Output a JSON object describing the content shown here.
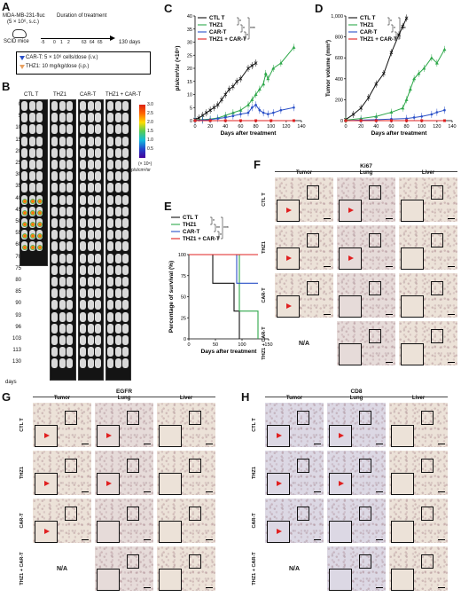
{
  "panels": {
    "A": {
      "letter": "A",
      "cells": "MDA-MB-231-fluc",
      "dose": "(5 × 10⁶, s.c.)",
      "mice": "SCID mice",
      "duration": "Duration of treatment",
      "ticks": [
        "-5",
        "0",
        "1",
        "2",
        "63",
        "64",
        "65"
      ],
      "end_day": "130 days",
      "legend": [
        "CAR-T: 5 × 10⁶ cells/dose (i.v.)",
        "THZ1: 10 mg/kg/dose (i.p.)"
      ]
    },
    "B": {
      "letter": "B",
      "groups": [
        "CTL T",
        "THZ1",
        "CAR-T",
        "THZ1 + CAR-T"
      ],
      "days": [
        "0",
        "5",
        "10",
        "15",
        "20",
        "25",
        "30",
        "35",
        "40",
        "45",
        "50",
        "55",
        "60",
        "70",
        "75",
        "80",
        "85",
        "90",
        "93",
        "96",
        "103",
        "113",
        "130"
      ],
      "days_label": "days",
      "colorbar": {
        "max": "3.0",
        "vals": [
          "3.0",
          "2.5",
          "2.0",
          "1.5",
          "1.0",
          "0.5"
        ],
        "exp": "(× 10⁵)",
        "unit": "p/s/cm²/sr"
      }
    },
    "C": {
      "letter": "C",
      "ylabel": "p/s/cm²/sr (×10⁵)",
      "xlabel": "Days after treatment",
      "yticks": [
        "0",
        "5",
        "10",
        "15",
        "20",
        "25",
        "30",
        "35",
        "40"
      ],
      "xticks": [
        "0",
        "20",
        "40",
        "60",
        "80",
        "100",
        "120",
        "140"
      ],
      "legend": [
        "CTL T",
        "THZ1",
        "CAR-T",
        "THZ1 + CAR-T"
      ],
      "sig": [
        "*",
        "*",
        "*",
        "***"
      ]
    },
    "D": {
      "letter": "D",
      "ylabel": "Tumor volume (mm³)",
      "xlabel": "Days after treatment",
      "yticks": [
        "0",
        "200",
        "400",
        "600",
        "800",
        "1,000"
      ],
      "xticks": [
        "0",
        "20",
        "40",
        "60",
        "80",
        "100",
        "120",
        "140"
      ],
      "legend": [
        "CTL T",
        "THZ1",
        "CAR-T",
        "THZ1 + CAR-T"
      ],
      "sig": [
        "*",
        "*",
        "*",
        "***"
      ]
    },
    "E": {
      "letter": "E",
      "ylabel": "Percentage of survival (%)",
      "xlabel": "Days after treatment",
      "yticks": [
        "0",
        "25",
        "50",
        "75",
        "100"
      ],
      "xticks": [
        "0",
        "50",
        "100",
        "150"
      ],
      "legend": [
        "CTL T",
        "THZ1",
        "CAR-T",
        "THZ1 + CAR-T"
      ],
      "sig": [
        "*",
        "**",
        "*",
        "***"
      ]
    },
    "F": {
      "letter": "F",
      "marker": "Ki67",
      "cols": [
        "Tumor",
        "Lung",
        "Liver"
      ],
      "rows": [
        "CTL  T",
        "THZ1",
        "CAR-T",
        "THZ1 + CAR-T"
      ],
      "na": "N/A"
    },
    "G": {
      "letter": "G",
      "marker": "EGFR",
      "cols": [
        "Tumor",
        "Lung",
        "Liver"
      ],
      "rows": [
        "CTL T",
        "THZ1",
        "CAR-T",
        "THZ1 + CAR-T"
      ],
      "na": "N/A"
    },
    "H": {
      "letter": "H",
      "marker": "CD8",
      "cols": [
        "Tumor",
        "Lung",
        "Liver"
      ],
      "rows": [
        "CTL T",
        "THZ1",
        "CAR-T",
        "THZ1 + CAR-T"
      ],
      "na": "N/A"
    }
  },
  "colors": {
    "ctl": "#111111",
    "thz1": "#2ea84a",
    "cart": "#2a50c8",
    "combo": "#e02020"
  },
  "chart_data": [
    {
      "type": "line",
      "panel": "C",
      "xlabel": "Days after treatment",
      "ylabel": "p/s/cm²/sr (×10⁵)",
      "ylim": [
        0,
        40
      ],
      "xlim": [
        0,
        140
      ],
      "series": [
        {
          "name": "CTL T",
          "x": [
            0,
            5,
            10,
            15,
            20,
            25,
            30,
            35,
            40,
            45,
            50,
            55,
            60,
            70,
            75,
            80
          ],
          "y": [
            0.5,
            1,
            2,
            3,
            4,
            5,
            6,
            8,
            10,
            12,
            13,
            15,
            16,
            20,
            21,
            22
          ]
        },
        {
          "name": "THZ1",
          "x": [
            0,
            10,
            20,
            30,
            40,
            50,
            60,
            70,
            75,
            80,
            85,
            90,
            93,
            96,
            103,
            113,
            130
          ],
          "y": [
            0.2,
            0.4,
            0.6,
            1,
            2,
            3,
            4,
            6,
            8,
            10,
            12,
            14,
            18,
            16,
            20,
            22,
            28
          ]
        },
        {
          "name": "CAR-T",
          "x": [
            0,
            10,
            20,
            30,
            40,
            50,
            60,
            70,
            75,
            80,
            85,
            90,
            96,
            103,
            113,
            130
          ],
          "y": [
            0.1,
            0.2,
            0.4,
            0.8,
            1.2,
            1.8,
            2.5,
            3,
            5,
            6,
            4,
            3,
            2.5,
            3,
            4,
            5
          ]
        },
        {
          "name": "THZ1 + CAR-T",
          "x": [
            0,
            20,
            40,
            60,
            80,
            100,
            130
          ],
          "y": [
            0,
            0,
            0,
            0,
            0,
            0,
            0
          ]
        }
      ]
    },
    {
      "type": "line",
      "panel": "D",
      "xlabel": "Days after treatment",
      "ylabel": "Tumor volume (mm³)",
      "ylim": [
        0,
        1000
      ],
      "xlim": [
        0,
        140
      ],
      "series": [
        {
          "name": "CTL T",
          "x": [
            0,
            10,
            20,
            30,
            40,
            50,
            60,
            70,
            75,
            80
          ],
          "y": [
            10,
            60,
            120,
            220,
            350,
            450,
            650,
            820,
            900,
            980
          ]
        },
        {
          "name": "THZ1",
          "x": [
            0,
            20,
            40,
            60,
            75,
            80,
            85,
            90,
            96,
            103,
            113,
            120,
            130
          ],
          "y": [
            5,
            20,
            40,
            80,
            120,
            200,
            300,
            400,
            450,
            500,
            600,
            550,
            680
          ]
        },
        {
          "name": "CAR-T",
          "x": [
            0,
            20,
            40,
            60,
            80,
            90,
            100,
            113,
            120,
            130
          ],
          "y": [
            0,
            5,
            10,
            15,
            20,
            30,
            40,
            60,
            80,
            100
          ]
        },
        {
          "name": "THZ1 + CAR-T",
          "x": [
            0,
            20,
            40,
            60,
            80,
            100,
            130
          ],
          "y": [
            0,
            0,
            0,
            0,
            0,
            0,
            0
          ]
        }
      ]
    },
    {
      "type": "line",
      "panel": "E",
      "xlabel": "Days after treatment",
      "ylabel": "Percentage of survival (%)",
      "ylim": [
        0,
        100
      ],
      "xlim": [
        0,
        150
      ],
      "series": [
        {
          "name": "CTL T",
          "x": [
            0,
            45,
            45,
            85,
            85,
            95,
            95
          ],
          "y": [
            100,
            100,
            66,
            66,
            33,
            33,
            0
          ]
        },
        {
          "name": "THZ1",
          "x": [
            0,
            95,
            95,
            130,
            130
          ],
          "y": [
            100,
            100,
            33,
            33,
            0
          ]
        },
        {
          "name": "CAR-T",
          "x": [
            0,
            90,
            90,
            130
          ],
          "y": [
            100,
            100,
            66,
            66
          ]
        },
        {
          "name": "THZ1 + CAR-T",
          "x": [
            0,
            130
          ],
          "y": [
            100,
            100
          ]
        }
      ]
    }
  ]
}
